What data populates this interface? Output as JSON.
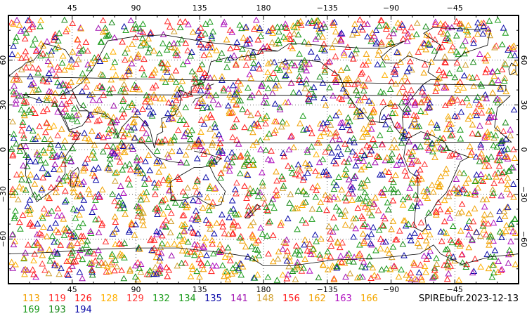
{
  "map": {
    "title": "SPIREbufr.2023-12-13",
    "lon_ticks_top": [
      "45",
      "90",
      "135",
      "180",
      "−135",
      "−90",
      "−45"
    ],
    "lon_ticks_bottom": [
      "45",
      "90",
      "135",
      "180",
      "−135",
      "−90",
      "−45"
    ],
    "lat_ticks": [
      "60",
      "30",
      "0",
      "−30",
      "−60"
    ],
    "longitude_range": [
      0,
      360
    ],
    "latitude_range": [
      -90,
      90
    ],
    "marker": "open-triangle",
    "background": "#ffffff",
    "coastline_color": "#000000"
  },
  "legend": {
    "items": [
      {
        "label": "113",
        "color": "#f2a000"
      },
      {
        "label": "119",
        "color": "#ff2a2a"
      },
      {
        "label": "126",
        "color": "#ff1a1a"
      },
      {
        "label": "128",
        "color": "#ffb000"
      },
      {
        "label": "129",
        "color": "#ff3a3a"
      },
      {
        "label": "132",
        "color": "#1e9e1e"
      },
      {
        "label": "134",
        "color": "#1a9a1a"
      },
      {
        "label": "135",
        "color": "#0a0aa8"
      },
      {
        "label": "141",
        "color": "#a010b0"
      },
      {
        "label": "148",
        "color": "#d0a030"
      },
      {
        "label": "156",
        "color": "#ff1a1a"
      },
      {
        "label": "162",
        "color": "#f0a000"
      },
      {
        "label": "163",
        "color": "#b010c0"
      },
      {
        "label": "166",
        "color": "#f4a800"
      },
      {
        "label": "169",
        "color": "#1a9a1a"
      },
      {
        "label": "193",
        "color": "#1a8a1a"
      },
      {
        "label": "194",
        "color": "#0a0aa8"
      }
    ]
  }
}
